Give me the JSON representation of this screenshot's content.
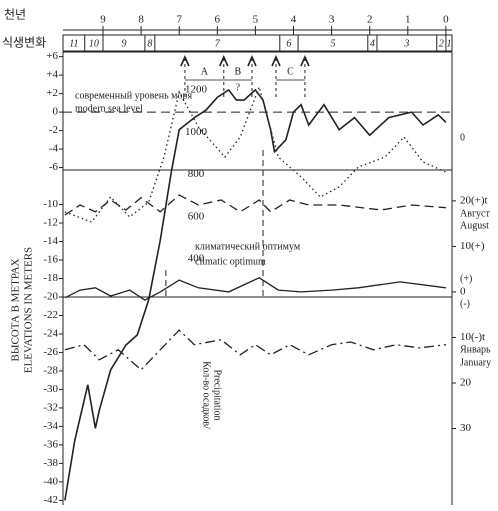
{
  "chart_data": {
    "type": "line",
    "x_label": "천년",
    "xlim": [
      10.05,
      -0.16
    ],
    "xticks": [
      9,
      8,
      7,
      6,
      5,
      4,
      3,
      2,
      1,
      0
    ],
    "vegetation": {
      "label": "식생변화",
      "zones": [
        "11",
        "10",
        "9",
        "8",
        "7",
        "6",
        "5",
        "4",
        "3",
        "2",
        "1"
      ],
      "bounds": [
        10.05,
        9.48,
        9.0,
        7.9,
        7.64,
        4.36,
        3.88,
        2.05,
        1.81,
        0.24,
        0.0,
        -0.16
      ]
    },
    "y_label": [
      "ВЫСОТА В МЕТРАХ",
      "ELEVATIONS IN METERS"
    ],
    "ylim": [
      -42.5,
      6.5
    ],
    "yticks": [
      {
        "value": 6,
        "label": "+6"
      },
      {
        "value": 4,
        "label": "+4"
      },
      {
        "value": 2,
        "label": "+2"
      },
      0,
      -2,
      -4,
      -6,
      -10,
      -12,
      -14,
      -16,
      -18,
      -20,
      -22,
      -24,
      -26,
      -28,
      -30,
      -32,
      -34,
      -36,
      -38,
      -40,
      -42
    ],
    "y2lim": [
      -46.8,
      52.7
    ],
    "y2ticks": [
      {
        "value": 20,
        "label": "20(+)t"
      },
      {
        "value": 10,
        "label": "10(+)"
      },
      0,
      {
        "value": -10,
        "label": "10(-)t"
      },
      {
        "value": -20,
        "label": "20"
      },
      {
        "value": -30,
        "label": "30"
      }
    ],
    "y3lim": [
      -766,
      1381
    ],
    "y3ticks": [
      400,
      600,
      800,
      1000,
      1200
    ],
    "y3_label": [
      "Кол-во осадков/",
      "Precipitation"
    ],
    "series": [
      {
        "color": "#222",
        "style": "solid",
        "width": 1.6,
        "x": [
          10.0,
          9.74,
          9.4,
          9.2,
          9.1,
          8.8,
          8.4,
          8.1,
          7.8,
          7.5,
          7.2,
          7.0,
          6.6,
          6.3,
          6.0,
          5.7,
          5.5,
          5.3,
          5.0,
          4.8,
          4.6,
          4.5,
          4.2,
          4.0,
          3.8,
          3.6,
          3.2,
          2.8,
          2.4,
          2.0,
          1.5,
          0.9,
          0.6,
          0.2,
          0.0
        ],
        "values": [
          -42,
          -35.5,
          -29.5,
          -34.2,
          -32.3,
          -27.9,
          -25.2,
          -24.1,
          -20.3,
          -13.9,
          -6.3,
          -1.9,
          -0.6,
          0.2,
          1.6,
          2.4,
          1.3,
          1.3,
          2.4,
          1.3,
          -1.9,
          -4.3,
          -3.0,
          0,
          0.8,
          -1.4,
          0.8,
          -1.9,
          -0.6,
          -2.5,
          -0.6,
          0,
          -1.4,
          -0.3,
          -1.1
        ]
      },
      {
        "color": "#222",
        "style": "dashed",
        "width": 1.3,
        "axis": "y2",
        "x": [
          10.0,
          9.6,
          9.2,
          8.8,
          8.4,
          8.0,
          7.5,
          7.0,
          6.5,
          5.9,
          5.4,
          4.9,
          4.6,
          4.1,
          3.6,
          2.8,
          1.7,
          0.9,
          0.0
        ],
        "values": [
          16.9,
          19.1,
          17.6,
          20.2,
          18.0,
          20.7,
          17.6,
          21.3,
          19.1,
          20.2,
          17.6,
          20.2,
          17.6,
          20.2,
          19.1,
          19.1,
          18.0,
          19.1,
          18.5
        ]
      },
      {
        "color": "#222",
        "style": "solid",
        "width": 1.3,
        "axis": "y2",
        "x": [
          10.0,
          9.6,
          9.2,
          8.8,
          8.3,
          7.9,
          7.5,
          7.0,
          6.5,
          5.7,
          4.9,
          4.4,
          3.8,
          3.0,
          2.3,
          1.2,
          0.0
        ],
        "values": [
          -1.3,
          0.4,
          0.9,
          -0.9,
          0.4,
          -1.8,
          0,
          2.6,
          0.9,
          0,
          3.1,
          0.4,
          0,
          0.4,
          0.9,
          2.2,
          0.9
        ]
      },
      {
        "color": "#222",
        "style": "dashdot",
        "width": 1.3,
        "axis": "y2",
        "x": [
          10.0,
          9.5,
          9.1,
          8.6,
          8.0,
          7.5,
          7.0,
          6.6,
          5.9,
          5.4,
          5.0,
          4.6,
          4.1,
          3.6,
          3.0,
          2.5,
          1.9,
          1.3,
          0.7,
          0.0
        ],
        "values": [
          -12.7,
          -11.6,
          -14.9,
          -12.7,
          -17.1,
          -12.7,
          -8.4,
          -11.6,
          -10.5,
          -13.8,
          -11.6,
          -13.8,
          -11.6,
          -13.8,
          -11.6,
          -11.0,
          -12.7,
          -11.6,
          -12.3,
          -11.6
        ]
      },
      {
        "color": "#222",
        "style": "dotted",
        "width": 1.3,
        "axis": "y3",
        "x": [
          10.0,
          9.3,
          8.8,
          8.3,
          7.8,
          7.4,
          7.0,
          6.5,
          5.8,
          5.4,
          4.9,
          4.4,
          3.8,
          3.3,
          2.8,
          2.3,
          1.6,
          1.1,
          0.6,
          0.0
        ],
        "values": [
          623,
          575,
          694,
          599,
          670,
          883,
          1191,
          1026,
          883,
          978,
          1215,
          883,
          789,
          694,
          741,
          836,
          883,
          978,
          860,
          812
        ]
      }
    ],
    "reference_line": {
      "value": 0,
      "style": "dashed"
    },
    "events": [
      6.85,
      5.83,
      5.09,
      4.46,
      3.7
    ],
    "periods": [
      {
        "label": "A",
        "from": 6.85,
        "to": 5.83
      },
      {
        "label": "B",
        "from": 5.83,
        "to": 5.09
      },
      {
        "label": "C",
        "from": 4.46,
        "to": 3.7
      }
    ],
    "period_note": "?",
    "optimum_bounds": [
      7.35,
      4.8
    ],
    "annotations": [
      "современный уровень моря",
      "modern sea level",
      "климатический оптимум",
      "climatic optimum",
      "0",
      "Август",
      "August",
      "(+)",
      "(-)",
      "Январь",
      "January"
    ]
  }
}
